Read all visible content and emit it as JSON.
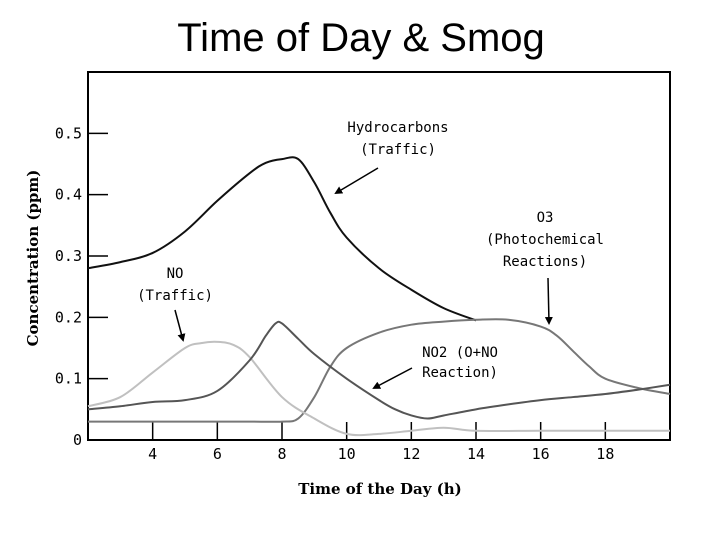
{
  "page": {
    "title": "Time of Day & Smog"
  },
  "chart_data": {
    "type": "line",
    "title": "Time of Day & Smog",
    "xlabel": "Time of the Day (h)",
    "ylabel": "Concentration (ppm)",
    "xlim": [
      2,
      20
    ],
    "ylim": [
      0,
      0.6
    ],
    "xticks": [
      4,
      6,
      8,
      10,
      12,
      14,
      16,
      18
    ],
    "yticks": [
      0,
      0.1,
      0.2,
      0.3,
      0.4,
      0.5
    ],
    "ytick_labels": [
      "0",
      "0.1",
      "0.2",
      "0.3",
      "0.4",
      "0.5"
    ],
    "grid": false,
    "series": [
      {
        "name": "Hydrocarbons",
        "color": "#111111",
        "x": [
          2,
          3,
          4,
          5,
          6,
          7,
          7.5,
          8,
          8.5,
          9,
          9.5,
          10,
          11,
          12,
          13,
          14
        ],
        "y": [
          0.28,
          0.29,
          0.305,
          0.34,
          0.39,
          0.435,
          0.452,
          0.458,
          0.458,
          0.42,
          0.37,
          0.33,
          0.28,
          0.245,
          0.215,
          0.195
        ]
      },
      {
        "name": "O3",
        "color": "#777777",
        "x": [
          2,
          3,
          4,
          5,
          6,
          7,
          8,
          8.5,
          9,
          9.5,
          10,
          11,
          12,
          13,
          14,
          15,
          16,
          16.5,
          17,
          17.5,
          18,
          19,
          20
        ],
        "y": [
          0.03,
          0.03,
          0.03,
          0.03,
          0.03,
          0.03,
          0.03,
          0.035,
          0.07,
          0.12,
          0.15,
          0.175,
          0.188,
          0.193,
          0.196,
          0.196,
          0.185,
          0.17,
          0.145,
          0.12,
          0.1,
          0.085,
          0.075
        ]
      },
      {
        "name": "NO",
        "color": "#c0c0c0",
        "x": [
          2,
          3,
          4,
          5,
          5.5,
          6,
          6.5,
          7,
          8,
          9,
          10,
          11,
          12,
          13,
          14,
          16,
          18,
          20
        ],
        "y": [
          0.055,
          0.07,
          0.11,
          0.15,
          0.158,
          0.16,
          0.155,
          0.135,
          0.07,
          0.035,
          0.01,
          0.01,
          0.015,
          0.02,
          0.015,
          0.015,
          0.015,
          0.015
        ]
      },
      {
        "name": "NO2",
        "color": "#555555",
        "x": [
          2,
          3,
          4,
          5,
          6,
          7,
          7.5,
          7.8,
          8,
          8.5,
          9,
          10,
          11,
          11.5,
          12,
          12.5,
          13,
          14,
          15,
          16,
          17,
          18,
          19,
          20
        ],
        "y": [
          0.05,
          0.055,
          0.062,
          0.065,
          0.08,
          0.13,
          0.17,
          0.19,
          0.19,
          0.165,
          0.14,
          0.1,
          0.065,
          0.05,
          0.04,
          0.035,
          0.04,
          0.05,
          0.058,
          0.065,
          0.07,
          0.075,
          0.082,
          0.09
        ]
      }
    ],
    "annotations": [
      {
        "id": "hc",
        "lines": [
          "Hydrocarbons",
          "(Traffic)"
        ]
      },
      {
        "id": "o3",
        "lines": [
          "O3",
          "(Photochemical",
          "Reactions)"
        ]
      },
      {
        "id": "no",
        "lines": [
          "NO",
          "(Traffic)"
        ]
      },
      {
        "id": "no2",
        "lines": [
          "NO2 (O+NO",
          "Reaction)"
        ]
      }
    ]
  }
}
